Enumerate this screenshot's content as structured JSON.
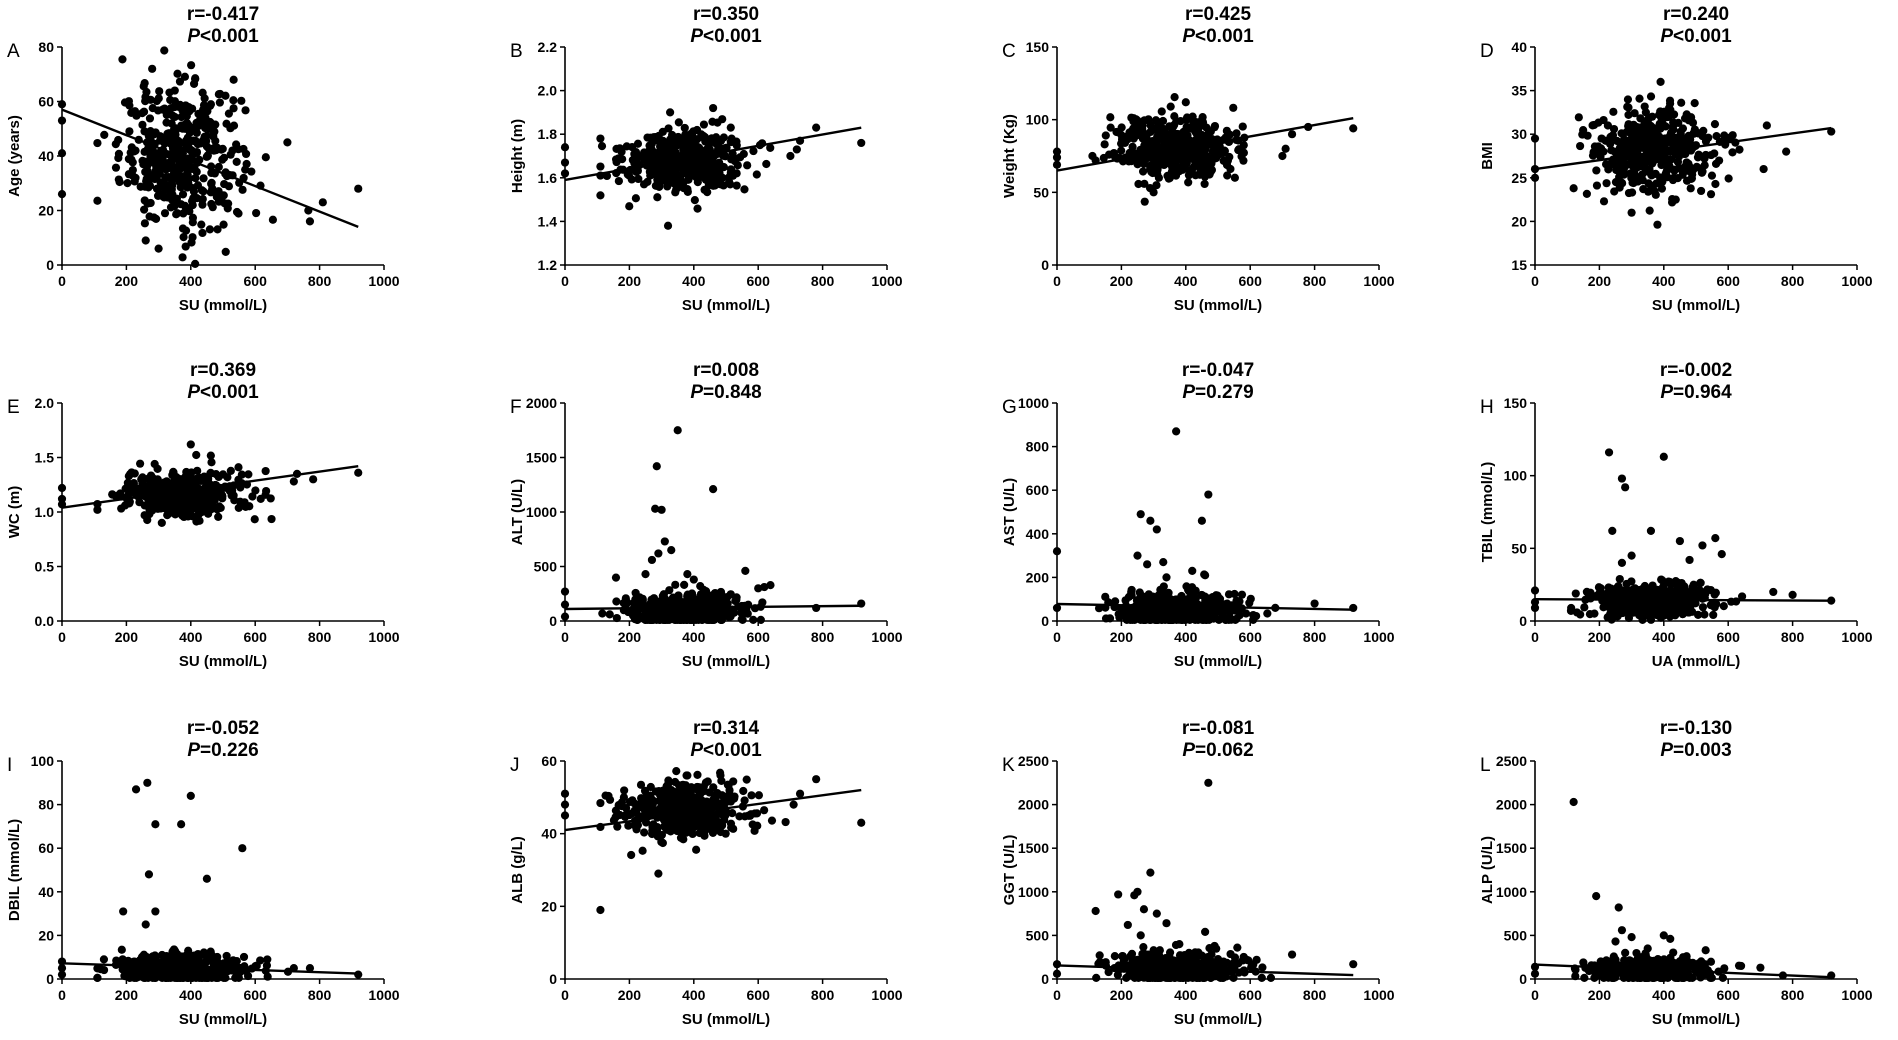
{
  "figure": {
    "background": "#ffffff",
    "ink": "#000000"
  },
  "chart_data": [
    {
      "id": "A",
      "type": "scatter",
      "xlabel": "SU (mmol/L)",
      "ylabel": "Age (years)",
      "r": "r=-0.417",
      "p_prefix": "P",
      "p_rest": "<0.001",
      "xlim": [
        0,
        1000
      ],
      "xticks": [
        0,
        200,
        400,
        600,
        800,
        1000
      ],
      "ylim": [
        0,
        80
      ],
      "yticks": [
        0,
        20,
        40,
        60,
        80
      ],
      "yticklabels": [
        "0",
        "20",
        "40",
        "60",
        "80"
      ],
      "fit": {
        "x": [
          0,
          920
        ],
        "y": [
          57,
          14
        ]
      },
      "cluster": {
        "cx": 370,
        "cy": 40,
        "sx": 95,
        "sy": 13,
        "n": 420
      },
      "points": [
        [
          0,
          59
        ],
        [
          0,
          53
        ],
        [
          0,
          41
        ],
        [
          0,
          26
        ],
        [
          920,
          28
        ],
        [
          810,
          23
        ],
        [
          770,
          16
        ],
        [
          765,
          20
        ],
        [
          700,
          45
        ],
        [
          280,
          72
        ],
        [
          300,
          6
        ],
        [
          260,
          9
        ]
      ]
    },
    {
      "id": "B",
      "type": "scatter",
      "xlabel": "SU (mmol/L)",
      "ylabel": "Height (m)",
      "r": "r=0.350",
      "p_prefix": "P",
      "p_rest": "<0.001",
      "xlim": [
        0,
        1000
      ],
      "xticks": [
        0,
        200,
        400,
        600,
        800,
        1000
      ],
      "ylim": [
        1.2,
        2.2
      ],
      "yticks": [
        1.2,
        1.4,
        1.6,
        1.8,
        2.0,
        2.2
      ],
      "yticklabels": [
        "1.2",
        "1.4",
        "1.6",
        "1.8",
        "2.0",
        "2.2"
      ],
      "fit": {
        "x": [
          0,
          920
        ],
        "y": [
          1.59,
          1.83
        ]
      },
      "cluster": {
        "cx": 370,
        "cy": 1.68,
        "sx": 95,
        "sy": 0.07,
        "n": 430
      },
      "points": [
        [
          0,
          1.74
        ],
        [
          0,
          1.67
        ],
        [
          0,
          1.62
        ],
        [
          920,
          1.76
        ],
        [
          780,
          1.83
        ],
        [
          730,
          1.77
        ],
        [
          720,
          1.73
        ],
        [
          700,
          1.7
        ],
        [
          320,
          1.38
        ],
        [
          110,
          1.78
        ],
        [
          460,
          1.92
        ]
      ]
    },
    {
      "id": "C",
      "type": "scatter",
      "xlabel": "SU (mmol/L)",
      "ylabel": "Weight (Kg)",
      "r": "r=0.425",
      "p_prefix": "P",
      "p_rest": "<0.001",
      "xlim": [
        0,
        1000
      ],
      "xticks": [
        0,
        200,
        400,
        600,
        800,
        1000
      ],
      "ylim": [
        0,
        150
      ],
      "yticks": [
        0,
        50,
        100,
        150
      ],
      "yticklabels": [
        "0",
        "50",
        "100",
        "150"
      ],
      "fit": {
        "x": [
          0,
          920
        ],
        "y": [
          65,
          101
        ]
      },
      "cluster": {
        "cx": 370,
        "cy": 80,
        "sx": 95,
        "sy": 11,
        "n": 430
      },
      "points": [
        [
          0,
          78
        ],
        [
          0,
          74
        ],
        [
          0,
          69
        ],
        [
          920,
          94
        ],
        [
          780,
          95
        ],
        [
          730,
          90
        ],
        [
          710,
          80
        ],
        [
          700,
          75
        ],
        [
          400,
          112
        ],
        [
          300,
          50
        ],
        [
          110,
          75
        ]
      ]
    },
    {
      "id": "D",
      "type": "scatter",
      "xlabel": "SU (mmol/L)",
      "ylabel": "BMI",
      "r": "r=0.240",
      "p_prefix": "P",
      "p_rest": "<0.001",
      "xlim": [
        0,
        1000
      ],
      "xticks": [
        0,
        200,
        400,
        600,
        800,
        1000
      ],
      "ylim": [
        15,
        40
      ],
      "yticks": [
        15,
        20,
        25,
        30,
        35,
        40
      ],
      "yticklabels": [
        "15",
        "20",
        "25",
        "30",
        "35",
        "40"
      ],
      "fit": {
        "x": [
          0,
          920
        ],
        "y": [
          26,
          30.7
        ]
      },
      "cluster": {
        "cx": 370,
        "cy": 28,
        "sx": 95,
        "sy": 2.5,
        "n": 430
      },
      "points": [
        [
          0,
          29.5
        ],
        [
          0,
          26
        ],
        [
          0,
          25
        ],
        [
          920,
          30.3
        ],
        [
          780,
          28
        ],
        [
          720,
          31
        ],
        [
          710,
          26
        ],
        [
          390,
          36
        ],
        [
          300,
          21
        ],
        [
          120,
          23.8
        ]
      ]
    },
    {
      "id": "E",
      "type": "scatter",
      "xlabel": "SU (mmol/L)",
      "ylabel": "WC (m)",
      "r": "r=0.369",
      "p_prefix": "P",
      "p_rest": "<0.001",
      "xlim": [
        0,
        1000
      ],
      "xticks": [
        0,
        200,
        400,
        600,
        800,
        1000
      ],
      "ylim": [
        0,
        2.0
      ],
      "yticks": [
        0,
        0.5,
        1.0,
        1.5,
        2.0
      ],
      "yticklabels": [
        "0.0",
        "0.5",
        "1.0",
        "1.5",
        "2.0"
      ],
      "fit": {
        "x": [
          0,
          920
        ],
        "y": [
          1.04,
          1.42
        ]
      },
      "cluster": {
        "cx": 370,
        "cy": 1.17,
        "sx": 95,
        "sy": 0.11,
        "n": 430
      },
      "points": [
        [
          0,
          1.22
        ],
        [
          0,
          1.12
        ],
        [
          0,
          1.07
        ],
        [
          920,
          1.36
        ],
        [
          780,
          1.3
        ],
        [
          730,
          1.35
        ],
        [
          720,
          1.28
        ],
        [
          400,
          1.62
        ],
        [
          310,
          0.9
        ],
        [
          110,
          1.02
        ]
      ]
    },
    {
      "id": "F",
      "type": "scatter",
      "xlabel": "SU (mmol/L)",
      "ylabel": "ALT (U/L)",
      "r": "r=0.008",
      "p_prefix": "P",
      "p_rest": "=0.848",
      "xlim": [
        0,
        1000
      ],
      "xticks": [
        0,
        200,
        400,
        600,
        800,
        1000
      ],
      "ylim": [
        0,
        2000
      ],
      "yticks": [
        0,
        500,
        1000,
        1500,
        2000
      ],
      "yticklabels": [
        "0",
        "500",
        "1000",
        "1500",
        "2000"
      ],
      "fit": {
        "x": [
          0,
          920
        ],
        "y": [
          110,
          140
        ]
      },
      "cluster": {
        "cx": 370,
        "cy": 110,
        "sx": 95,
        "sy": 80,
        "n": 400
      },
      "points": [
        [
          0,
          270
        ],
        [
          0,
          150
        ],
        [
          0,
          40
        ],
        [
          920,
          160
        ],
        [
          780,
          120
        ],
        [
          350,
          1750
        ],
        [
          285,
          1420
        ],
        [
          460,
          1210
        ],
        [
          280,
          1030
        ],
        [
          300,
          1020
        ],
        [
          310,
          730
        ],
        [
          290,
          620
        ],
        [
          330,
          650
        ],
        [
          270,
          560
        ],
        [
          250,
          430
        ],
        [
          380,
          430
        ],
        [
          400,
          380
        ],
        [
          560,
          460
        ],
        [
          600,
          300
        ],
        [
          420,
          320
        ],
        [
          490,
          210
        ]
      ]
    },
    {
      "id": "G",
      "type": "scatter",
      "xlabel": "SU (mmol/L)",
      "ylabel": "AST (U/L)",
      "r": "r=-0.047",
      "p_prefix": "P",
      "p_rest": "=0.279",
      "xlim": [
        0,
        1000
      ],
      "xticks": [
        0,
        200,
        400,
        600,
        800,
        1000
      ],
      "ylim": [
        0,
        1000
      ],
      "yticks": [
        0,
        200,
        400,
        600,
        800,
        1000
      ],
      "yticklabels": [
        "0",
        "200",
        "400",
        "600",
        "800",
        "1000"
      ],
      "fit": {
        "x": [
          0,
          920
        ],
        "y": [
          78,
          52
        ]
      },
      "cluster": {
        "cx": 370,
        "cy": 55,
        "sx": 95,
        "sy": 40,
        "n": 400
      },
      "points": [
        [
          0,
          320
        ],
        [
          0,
          60
        ],
        [
          920,
          60
        ],
        [
          800,
          80
        ],
        [
          370,
          870
        ],
        [
          470,
          580
        ],
        [
          260,
          490
        ],
        [
          290,
          460
        ],
        [
          310,
          420
        ],
        [
          450,
          460
        ],
        [
          250,
          300
        ],
        [
          330,
          270
        ],
        [
          420,
          230
        ],
        [
          340,
          200
        ],
        [
          460,
          210
        ],
        [
          280,
          260
        ]
      ]
    },
    {
      "id": "H",
      "type": "scatter",
      "xlabel": "UA (mmol/L)",
      "ylabel": "TBIL (mmol/L)",
      "r": "r=-0.002",
      "p_prefix": "P",
      "p_rest": "=0.964",
      "xlim": [
        0,
        1000
      ],
      "xticks": [
        0,
        200,
        400,
        600,
        800,
        1000
      ],
      "ylim": [
        0,
        150
      ],
      "yticks": [
        0,
        50,
        100,
        150
      ],
      "yticklabels": [
        "0",
        "50",
        "100",
        "150"
      ],
      "fit": {
        "x": [
          0,
          920
        ],
        "y": [
          15,
          14
        ]
      },
      "cluster": {
        "cx": 370,
        "cy": 14,
        "sx": 95,
        "sy": 6,
        "n": 420
      },
      "points": [
        [
          0,
          21
        ],
        [
          0,
          13
        ],
        [
          0,
          9
        ],
        [
          920,
          14
        ],
        [
          800,
          18
        ],
        [
          740,
          20
        ],
        [
          230,
          116
        ],
        [
          400,
          113
        ],
        [
          270,
          98
        ],
        [
          280,
          92
        ],
        [
          240,
          62
        ],
        [
          360,
          62
        ],
        [
          450,
          55
        ],
        [
          560,
          57
        ],
        [
          300,
          45
        ],
        [
          480,
          42
        ],
        [
          520,
          52
        ],
        [
          270,
          40
        ],
        [
          580,
          46
        ]
      ]
    },
    {
      "id": "I",
      "type": "scatter",
      "xlabel": "SU (mmol/L)",
      "ylabel": "DBIL (mmol/L)",
      "r": "r=-0.052",
      "p_prefix": "P",
      "p_rest": "=0.226",
      "xlim": [
        0,
        1000
      ],
      "xticks": [
        0,
        200,
        400,
        600,
        800,
        1000
      ],
      "ylim": [
        0,
        100
      ],
      "yticks": [
        0,
        20,
        40,
        60,
        80,
        100
      ],
      "yticklabels": [
        "0",
        "20",
        "40",
        "60",
        "80",
        "100"
      ],
      "fit": {
        "x": [
          0,
          920
        ],
        "y": [
          7.2,
          2.5
        ]
      },
      "cluster": {
        "cx": 370,
        "cy": 5,
        "sx": 95,
        "sy": 4,
        "n": 400
      },
      "points": [
        [
          0,
          8
        ],
        [
          0,
          5
        ],
        [
          0,
          2
        ],
        [
          920,
          2
        ],
        [
          720,
          5
        ],
        [
          770,
          5
        ],
        [
          265,
          90
        ],
        [
          230,
          87
        ],
        [
          400,
          84
        ],
        [
          290,
          71
        ],
        [
          370,
          71
        ],
        [
          560,
          60
        ],
        [
          450,
          46
        ],
        [
          270,
          48
        ],
        [
          190,
          31
        ],
        [
          290,
          31
        ],
        [
          260,
          25
        ]
      ]
    },
    {
      "id": "J",
      "type": "scatter",
      "xlabel": "SU (mmol/L)",
      "ylabel": "ALB (g/L)",
      "r": "r=0.314",
      "p_prefix": "P",
      "p_rest": "<0.001",
      "xlim": [
        0,
        1000
      ],
      "xticks": [
        0,
        200,
        400,
        600,
        800,
        1000
      ],
      "ylim": [
        0,
        60
      ],
      "yticks": [
        0,
        20,
        40,
        60
      ],
      "yticklabels": [
        "0",
        "20",
        "40",
        "60"
      ],
      "fit": {
        "x": [
          0,
          920
        ],
        "y": [
          41,
          52
        ]
      },
      "cluster": {
        "cx": 370,
        "cy": 46,
        "sx": 95,
        "sy": 3.8,
        "n": 430
      },
      "points": [
        [
          0,
          51
        ],
        [
          0,
          48
        ],
        [
          0,
          45
        ],
        [
          920,
          43
        ],
        [
          780,
          55
        ],
        [
          730,
          51
        ],
        [
          710,
          48
        ],
        [
          110,
          19
        ],
        [
          290,
          29
        ],
        [
          380,
          56
        ]
      ]
    },
    {
      "id": "K",
      "type": "scatter",
      "xlabel": "SU (mmol/L)",
      "ylabel": "GGT (U/L)",
      "r": "r=-0.081",
      "p_prefix": "P",
      "p_rest": "=0.062",
      "xlim": [
        0,
        1000
      ],
      "xticks": [
        0,
        200,
        400,
        600,
        800,
        1000
      ],
      "ylim": [
        0,
        2500
      ],
      "yticks": [
        0,
        500,
        1000,
        1500,
        2000,
        2500
      ],
      "yticklabels": [
        "0",
        "500",
        "1000",
        "1500",
        "2000",
        "2500"
      ],
      "fit": {
        "x": [
          0,
          920
        ],
        "y": [
          155,
          45
        ]
      },
      "cluster": {
        "cx": 370,
        "cy": 120,
        "sx": 95,
        "sy": 90,
        "n": 400
      },
      "points": [
        [
          0,
          170
        ],
        [
          0,
          60
        ],
        [
          920,
          170
        ],
        [
          730,
          280
        ],
        [
          470,
          2250
        ],
        [
          290,
          1220
        ],
        [
          250,
          1000
        ],
        [
          240,
          960
        ],
        [
          190,
          970
        ],
        [
          120,
          780
        ],
        [
          270,
          800
        ],
        [
          310,
          750
        ],
        [
          220,
          620
        ],
        [
          340,
          640
        ],
        [
          260,
          500
        ],
        [
          460,
          540
        ],
        [
          380,
          400
        ],
        [
          560,
          360
        ],
        [
          410,
          300
        ],
        [
          300,
          330
        ],
        [
          620,
          220
        ]
      ]
    },
    {
      "id": "L",
      "type": "scatter",
      "xlabel": "SU (mmol/L)",
      "ylabel": "ALP (U/L)",
      "r": "r=-0.130",
      "p_prefix": "P",
      "p_rest": "=0.003",
      "xlim": [
        0,
        1000
      ],
      "xticks": [
        0,
        200,
        400,
        600,
        800,
        1000
      ],
      "ylim": [
        0,
        2500
      ],
      "yticks": [
        0,
        500,
        1000,
        1500,
        2000,
        2500
      ],
      "yticklabels": [
        "0",
        "500",
        "1000",
        "1500",
        "2000",
        "2500"
      ],
      "fit": {
        "x": [
          0,
          920
        ],
        "y": [
          165,
          20
        ]
      },
      "cluster": {
        "cx": 370,
        "cy": 100,
        "sx": 95,
        "sy": 70,
        "n": 400
      },
      "points": [
        [
          0,
          140
        ],
        [
          0,
          60
        ],
        [
          920,
          40
        ],
        [
          770,
          40
        ],
        [
          120,
          2030
        ],
        [
          190,
          950
        ],
        [
          260,
          820
        ],
        [
          270,
          560
        ],
        [
          300,
          480
        ],
        [
          250,
          430
        ],
        [
          400,
          500
        ],
        [
          420,
          460
        ],
        [
          350,
          350
        ],
        [
          530,
          330
        ],
        [
          280,
          300
        ],
        [
          460,
          250
        ],
        [
          330,
          250
        ],
        [
          640,
          150
        ],
        [
          700,
          130
        ]
      ]
    }
  ]
}
